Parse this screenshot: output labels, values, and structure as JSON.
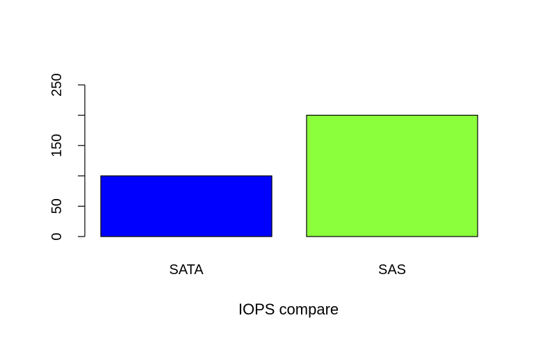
{
  "chart_data": {
    "type": "bar",
    "categories": [
      "SATA",
      "SAS"
    ],
    "values": [
      100,
      200
    ],
    "colors": [
      "#0000ff",
      "#8cff3c"
    ],
    "title": "",
    "xlabel": "IOPS compare",
    "ylabel": "",
    "ylim": [
      0,
      250
    ],
    "yticks": [
      0,
      50,
      150,
      250
    ],
    "ytick_marks": [
      0,
      50,
      100,
      150,
      200,
      250
    ],
    "grid": false,
    "legend": "none"
  }
}
